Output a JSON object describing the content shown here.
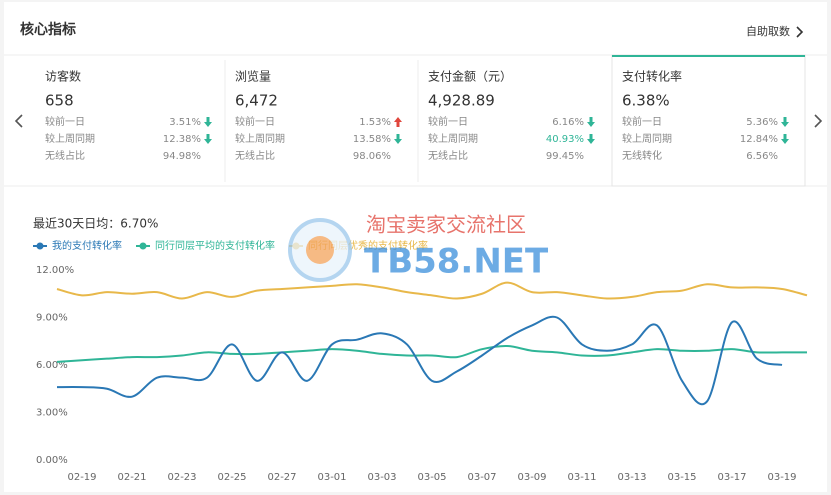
{
  "header": {
    "title": "核心指标",
    "action": "自助取数"
  },
  "cards": [
    {
      "title": "访客数",
      "value": "658",
      "active": false,
      "rows": [
        {
          "label": "较前一日",
          "value": "3.51%",
          "arrow": "down"
        },
        {
          "label": "较上周同期",
          "value": "12.38%",
          "arrow": "down"
        },
        {
          "label": "无线占比",
          "value": "94.98%"
        }
      ]
    },
    {
      "title": "浏览量",
      "value": "6,472",
      "active": false,
      "rows": [
        {
          "label": "较前一日",
          "value": "1.53%",
          "arrow": "up"
        },
        {
          "label": "较上周同期",
          "value": "13.58%",
          "arrow": "down"
        },
        {
          "label": "无线占比",
          "value": "98.06%"
        }
      ]
    },
    {
      "title": "支付金额（元）",
      "value": "4,928.89",
      "active": false,
      "rows": [
        {
          "label": "较前一日",
          "value": "6.16%",
          "arrow": "down"
        },
        {
          "label": "较上周同期",
          "value": "40.93%",
          "arrow": "down",
          "color": "#2fb597"
        },
        {
          "label": "无线占比",
          "value": "99.45%"
        }
      ]
    },
    {
      "title": "支付转化率",
      "value": "6.38%",
      "active": true,
      "rows": [
        {
          "label": "较前一日",
          "value": "5.36%",
          "arrow": "down"
        },
        {
          "label": "较上周同期",
          "value": "12.84%",
          "arrow": "down"
        },
        {
          "label": "无线转化",
          "value": "6.56%"
        }
      ]
    }
  ],
  "chart_data": {
    "type": "line",
    "title": "最近30天日均：6.70%",
    "categories": [
      null,
      "02-19",
      null,
      "02-21",
      null,
      "02-23",
      null,
      "02-25",
      null,
      "02-27",
      null,
      "03-01",
      null,
      "03-03",
      null,
      "03-05",
      null,
      "03-07",
      null,
      "03-09",
      null,
      "03-11",
      null,
      "03-13",
      null,
      "03-15",
      null,
      "03-17",
      null,
      "03-19",
      null
    ],
    "series": [
      {
        "name": "我的支付转化率",
        "color": "#2a78b5",
        "values": [
          4.6,
          4.6,
          4.5,
          4.0,
          5.2,
          5.2,
          5.2,
          7.3,
          5.0,
          6.8,
          5.0,
          7.3,
          7.6,
          8.0,
          7.3,
          5.0,
          5.6,
          6.6,
          7.7,
          8.5,
          9.0,
          7.3,
          6.9,
          7.3,
          8.5,
          5.0,
          3.7,
          8.7,
          6.4,
          6.0,
          null
        ]
      },
      {
        "name": "同行同层平均的支付转化率",
        "color": "#2fb597",
        "values": [
          6.2,
          6.3,
          6.4,
          6.5,
          6.5,
          6.6,
          6.8,
          6.7,
          6.7,
          6.8,
          6.9,
          7.0,
          6.9,
          6.7,
          6.6,
          6.6,
          6.5,
          7.0,
          7.2,
          6.9,
          6.8,
          6.6,
          6.6,
          6.8,
          7.0,
          6.9,
          6.9,
          7.0,
          6.8,
          6.8,
          6.8
        ]
      },
      {
        "name": "同行同层优秀的支付转化率",
        "color": "#e8b84a",
        "values": [
          10.8,
          10.4,
          10.6,
          10.5,
          10.6,
          10.2,
          10.6,
          10.3,
          10.7,
          10.8,
          10.9,
          11.0,
          11.1,
          10.9,
          10.6,
          10.4,
          10.2,
          10.5,
          11.2,
          10.6,
          10.6,
          10.4,
          10.2,
          10.3,
          10.6,
          10.7,
          11.1,
          10.9,
          10.9,
          10.8,
          10.4
        ]
      }
    ],
    "ylim": [
      0,
      12
    ],
    "yticks": [
      {
        "value": 0,
        "label": "0.00%"
      },
      {
        "value": 3,
        "label": "3.00%"
      },
      {
        "value": 6,
        "label": "6.00%"
      },
      {
        "value": 9,
        "label": "9.00%"
      },
      {
        "value": 12,
        "label": "12.00%"
      }
    ],
    "grid": false
  },
  "watermark": {
    "text": "淘宝卖家交流社区",
    "site": "TB58.NET"
  }
}
